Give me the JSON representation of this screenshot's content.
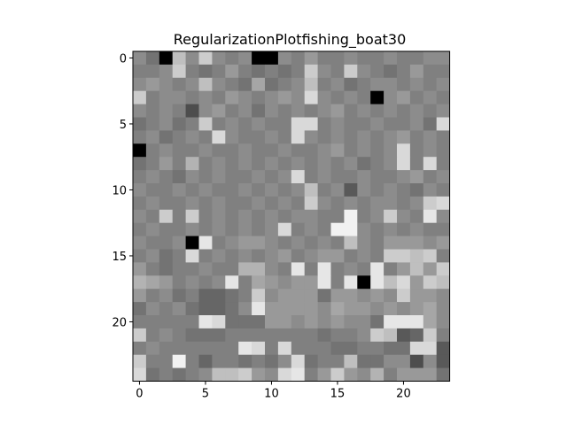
{
  "chart_data": {
    "type": "heatmap",
    "title": "RegularizationPlotfishing_boat30",
    "xlabel": "",
    "ylabel": "",
    "colormap": "gray",
    "value_range": [
      0,
      1
    ],
    "grid": false,
    "n_rows": 25,
    "n_cols": 24,
    "x_ticks": [
      0,
      5,
      10,
      15,
      20
    ],
    "y_ticks": [
      0,
      5,
      10,
      15,
      20
    ],
    "x_tick_labels": [
      "0",
      "5",
      "10",
      "15",
      "20"
    ],
    "y_tick_labels": [
      "0",
      "5",
      "10",
      "15",
      "20"
    ],
    "xlim": [
      -0.5,
      23.5
    ],
    "ylim": [
      24.5,
      -0.5
    ],
    "rows": [
      [
        0.55,
        0.45,
        0.0,
        0.75,
        0.55,
        0.8,
        0.55,
        0.5,
        0.55,
        0.0,
        0.0,
        0.55,
        0.5,
        0.6,
        0.5,
        0.5,
        0.55,
        0.5,
        0.5,
        0.55,
        0.5,
        0.5,
        0.55,
        0.55
      ],
      [
        0.5,
        0.5,
        0.55,
        0.8,
        0.5,
        0.45,
        0.5,
        0.6,
        0.5,
        0.45,
        0.5,
        0.45,
        0.5,
        0.8,
        0.55,
        0.5,
        0.8,
        0.55,
        0.5,
        0.45,
        0.5,
        0.6,
        0.5,
        0.5
      ],
      [
        0.55,
        0.6,
        0.55,
        0.5,
        0.55,
        0.75,
        0.55,
        0.5,
        0.45,
        0.65,
        0.45,
        0.5,
        0.55,
        0.75,
        0.5,
        0.55,
        0.45,
        0.5,
        0.55,
        0.55,
        0.5,
        0.55,
        0.5,
        0.55
      ],
      [
        0.8,
        0.5,
        0.55,
        0.55,
        0.5,
        0.55,
        0.5,
        0.6,
        0.55,
        0.5,
        0.55,
        0.6,
        0.55,
        0.85,
        0.55,
        0.5,
        0.55,
        0.5,
        0.0,
        0.55,
        0.6,
        0.5,
        0.55,
        0.5
      ],
      [
        0.55,
        0.5,
        0.55,
        0.5,
        0.3,
        0.55,
        0.6,
        0.5,
        0.55,
        0.45,
        0.55,
        0.5,
        0.55,
        0.5,
        0.55,
        0.6,
        0.5,
        0.55,
        0.5,
        0.55,
        0.5,
        0.55,
        0.5,
        0.55
      ],
      [
        0.45,
        0.5,
        0.55,
        0.45,
        0.5,
        0.8,
        0.5,
        0.55,
        0.5,
        0.55,
        0.5,
        0.5,
        0.85,
        0.85,
        0.5,
        0.55,
        0.5,
        0.5,
        0.55,
        0.5,
        0.5,
        0.55,
        0.45,
        0.85
      ],
      [
        0.5,
        0.55,
        0.45,
        0.5,
        0.55,
        0.5,
        0.85,
        0.55,
        0.5,
        0.5,
        0.55,
        0.5,
        0.85,
        0.55,
        0.5,
        0.55,
        0.5,
        0.55,
        0.5,
        0.55,
        0.6,
        0.5,
        0.55,
        0.5
      ],
      [
        0.0,
        0.5,
        0.55,
        0.5,
        0.5,
        0.55,
        0.5,
        0.5,
        0.55,
        0.5,
        0.5,
        0.55,
        0.5,
        0.5,
        0.55,
        0.6,
        0.5,
        0.55,
        0.5,
        0.55,
        0.85,
        0.5,
        0.55,
        0.5
      ],
      [
        0.45,
        0.5,
        0.6,
        0.5,
        0.7,
        0.5,
        0.55,
        0.5,
        0.55,
        0.5,
        0.55,
        0.5,
        0.55,
        0.5,
        0.55,
        0.5,
        0.55,
        0.45,
        0.5,
        0.55,
        0.85,
        0.5,
        0.85,
        0.5
      ],
      [
        0.5,
        0.55,
        0.5,
        0.45,
        0.55,
        0.5,
        0.55,
        0.5,
        0.5,
        0.55,
        0.5,
        0.55,
        0.85,
        0.5,
        0.55,
        0.5,
        0.5,
        0.55,
        0.5,
        0.5,
        0.55,
        0.6,
        0.5,
        0.55
      ],
      [
        0.55,
        0.5,
        0.5,
        0.55,
        0.5,
        0.55,
        0.5,
        0.5,
        0.55,
        0.5,
        0.55,
        0.5,
        0.55,
        0.75,
        0.5,
        0.55,
        0.35,
        0.55,
        0.5,
        0.55,
        0.5,
        0.45,
        0.55,
        0.5
      ],
      [
        0.5,
        0.55,
        0.5,
        0.5,
        0.55,
        0.5,
        0.55,
        0.5,
        0.5,
        0.55,
        0.5,
        0.55,
        0.5,
        0.8,
        0.55,
        0.5,
        0.55,
        0.5,
        0.55,
        0.55,
        0.5,
        0.55,
        0.8,
        0.85
      ],
      [
        0.55,
        0.5,
        0.8,
        0.5,
        0.8,
        0.5,
        0.55,
        0.5,
        0.55,
        0.5,
        0.55,
        0.5,
        0.55,
        0.55,
        0.5,
        0.5,
        0.95,
        0.5,
        0.55,
        0.8,
        0.55,
        0.5,
        0.9,
        0.55
      ],
      [
        0.5,
        0.55,
        0.5,
        0.5,
        0.55,
        0.5,
        0.55,
        0.5,
        0.55,
        0.5,
        0.55,
        0.85,
        0.5,
        0.55,
        0.5,
        0.95,
        0.95,
        0.55,
        0.5,
        0.55,
        0.5,
        0.55,
        0.5,
        0.5
      ],
      [
        0.55,
        0.5,
        0.5,
        0.55,
        0.0,
        0.9,
        0.5,
        0.55,
        0.6,
        0.6,
        0.55,
        0.5,
        0.55,
        0.5,
        0.55,
        0.5,
        0.75,
        0.55,
        0.5,
        0.6,
        0.6,
        0.6,
        0.55,
        0.6
      ],
      [
        0.5,
        0.55,
        0.45,
        0.5,
        0.85,
        0.5,
        0.55,
        0.5,
        0.55,
        0.5,
        0.55,
        0.6,
        0.5,
        0.55,
        0.6,
        0.6,
        0.5,
        0.55,
        0.5,
        0.8,
        0.8,
        0.75,
        0.8,
        0.5
      ],
      [
        0.6,
        0.5,
        0.45,
        0.5,
        0.5,
        0.55,
        0.5,
        0.5,
        0.7,
        0.7,
        0.55,
        0.5,
        0.9,
        0.5,
        0.9,
        0.5,
        0.55,
        0.5,
        0.9,
        0.5,
        0.6,
        0.75,
        0.6,
        0.8
      ],
      [
        0.7,
        0.65,
        0.6,
        0.5,
        0.55,
        0.5,
        0.55,
        0.9,
        0.5,
        0.65,
        0.6,
        0.55,
        0.6,
        0.6,
        0.9,
        0.5,
        0.9,
        0.0,
        0.9,
        0.75,
        0.85,
        0.6,
        0.8,
        0.75
      ],
      [
        0.6,
        0.5,
        0.55,
        0.45,
        0.5,
        0.4,
        0.4,
        0.45,
        0.5,
        0.8,
        0.55,
        0.6,
        0.6,
        0.6,
        0.45,
        0.6,
        0.6,
        0.55,
        0.6,
        0.55,
        0.8,
        0.6,
        0.6,
        0.55
      ],
      [
        0.45,
        0.55,
        0.5,
        0.55,
        0.45,
        0.4,
        0.4,
        0.45,
        0.55,
        0.9,
        0.6,
        0.6,
        0.6,
        0.6,
        0.55,
        0.65,
        0.6,
        0.6,
        0.55,
        0.6,
        0.55,
        0.6,
        0.65,
        0.55
      ],
      [
        0.5,
        0.5,
        0.5,
        0.5,
        0.5,
        0.9,
        0.85,
        0.45,
        0.45,
        0.45,
        0.6,
        0.6,
        0.55,
        0.6,
        0.55,
        0.6,
        0.55,
        0.55,
        0.45,
        0.9,
        0.9,
        0.9,
        0.65,
        0.55
      ],
      [
        0.8,
        0.5,
        0.55,
        0.5,
        0.45,
        0.45,
        0.45,
        0.5,
        0.5,
        0.5,
        0.5,
        0.5,
        0.5,
        0.5,
        0.45,
        0.5,
        0.5,
        0.55,
        0.8,
        0.75,
        0.35,
        0.4,
        0.8,
        0.5
      ],
      [
        0.5,
        0.55,
        0.5,
        0.5,
        0.5,
        0.5,
        0.5,
        0.5,
        0.9,
        0.85,
        0.5,
        0.85,
        0.5,
        0.5,
        0.5,
        0.45,
        0.45,
        0.5,
        0.5,
        0.45,
        0.45,
        0.85,
        0.85,
        0.35
      ],
      [
        0.8,
        0.5,
        0.5,
        0.95,
        0.5,
        0.4,
        0.5,
        0.5,
        0.45,
        0.5,
        0.45,
        0.55,
        0.85,
        0.45,
        0.5,
        0.5,
        0.75,
        0.45,
        0.45,
        0.55,
        0.55,
        0.3,
        0.55,
        0.35
      ],
      [
        0.85,
        0.45,
        0.5,
        0.45,
        0.5,
        0.55,
        0.75,
        0.75,
        0.8,
        0.6,
        0.55,
        0.85,
        0.9,
        0.5,
        0.6,
        0.8,
        0.6,
        0.55,
        0.7,
        0.5,
        0.6,
        0.6,
        0.6,
        0.45
      ]
    ]
  }
}
